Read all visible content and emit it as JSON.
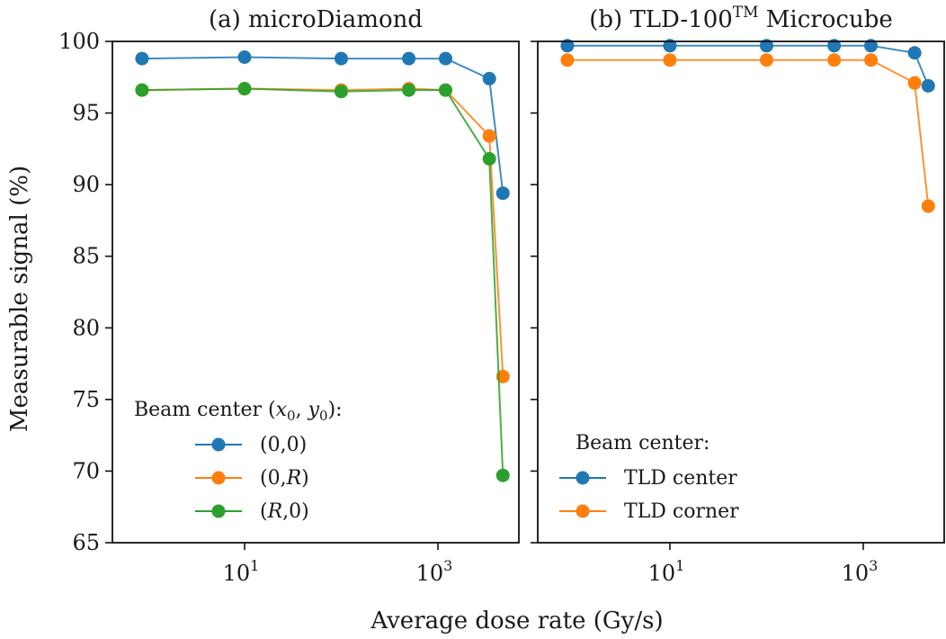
{
  "chart_data": {
    "type": "line",
    "xlabel": "Average dose rate (Gy/s)",
    "ylabel": "Measurable signal (%)",
    "xscale": "log",
    "xlim": [
      0.43,
      6870
    ],
    "ylim": [
      65,
      100
    ],
    "yticks": [
      65,
      70,
      75,
      80,
      85,
      90,
      95,
      100
    ],
    "xticks": [
      {
        "value": 10,
        "base": "10",
        "exp": "1"
      },
      {
        "value": 1000,
        "base": "10",
        "exp": "3"
      }
    ],
    "grid": false,
    "panels": [
      {
        "title": "(a) microDiamond",
        "legend": {
          "title": "Beam center (x0, y0):",
          "title_prefix": "Beam center (",
          "title_x": "x",
          "title_y": "y",
          "title_sub": "0",
          "title_suffix": "):",
          "placement": "lower-left"
        },
        "x": [
          0.87,
          10,
          100,
          500,
          1200,
          3400,
          4700
        ],
        "series": [
          {
            "name": "(0,0)",
            "color": "#1f77b4",
            "values": [
              98.8,
              98.9,
              98.8,
              98.8,
              98.8,
              97.4,
              89.4
            ]
          },
          {
            "name": "(0,R)",
            "color": "#ff7f0e",
            "values": [
              96.6,
              96.7,
              96.6,
              96.7,
              96.6,
              93.4,
              76.6
            ]
          },
          {
            "name": "(R,0)",
            "color": "#2ca02c",
            "values": [
              96.6,
              96.7,
              96.5,
              96.6,
              96.6,
              91.8,
              69.7
            ]
          }
        ]
      },
      {
        "title": "(b) TLD-100",
        "title_sup": "TM",
        "title_suffix": " Microcube",
        "legend": {
          "title": "Beam center:",
          "placement": "lower-left"
        },
        "x": [
          0.87,
          10,
          100,
          500,
          1200,
          3400,
          4700
        ],
        "series": [
          {
            "name": "TLD center",
            "color": "#1f77b4",
            "values": [
              99.7,
              99.7,
              99.7,
              99.7,
              99.7,
              99.2,
              96.9
            ]
          },
          {
            "name": "TLD corner",
            "color": "#ff7f0e",
            "values": [
              98.7,
              98.7,
              98.7,
              98.7,
              98.7,
              97.1,
              88.5
            ]
          }
        ]
      }
    ]
  }
}
